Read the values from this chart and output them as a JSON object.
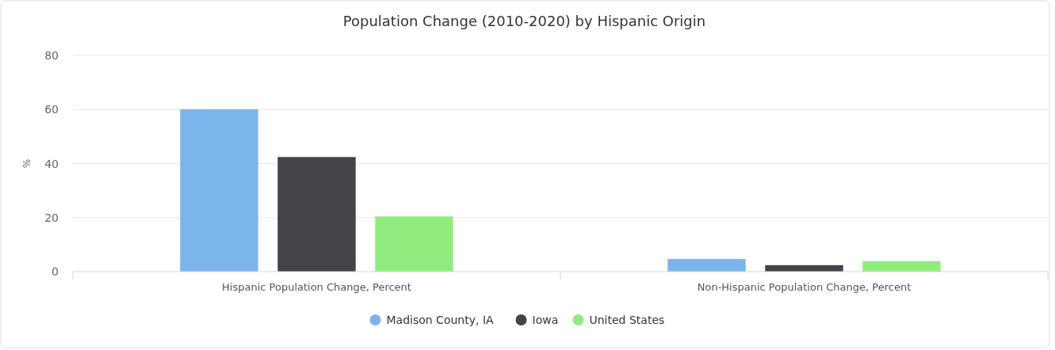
{
  "chart_data": {
    "type": "bar",
    "title": "Population Change (2010-2020) by Hispanic Origin",
    "ylabel": "%",
    "categories": [
      "Hispanic Population Change, Percent",
      "Non-Hispanic Population Change, Percent"
    ],
    "series": [
      {
        "name": "Madison County, IA",
        "color": "#7cb5ec",
        "values": [
          60.1,
          4.7
        ]
      },
      {
        "name": "Iowa",
        "color": "#434348",
        "values": [
          42.4,
          2.4
        ]
      },
      {
        "name": "United States",
        "color": "#90ed7d",
        "values": [
          20.4,
          3.9
        ]
      }
    ],
    "ylim": [
      0,
      80
    ],
    "yticks": [
      0,
      20,
      40,
      60,
      80
    ],
    "grid": "y",
    "legend": "bottom"
  }
}
